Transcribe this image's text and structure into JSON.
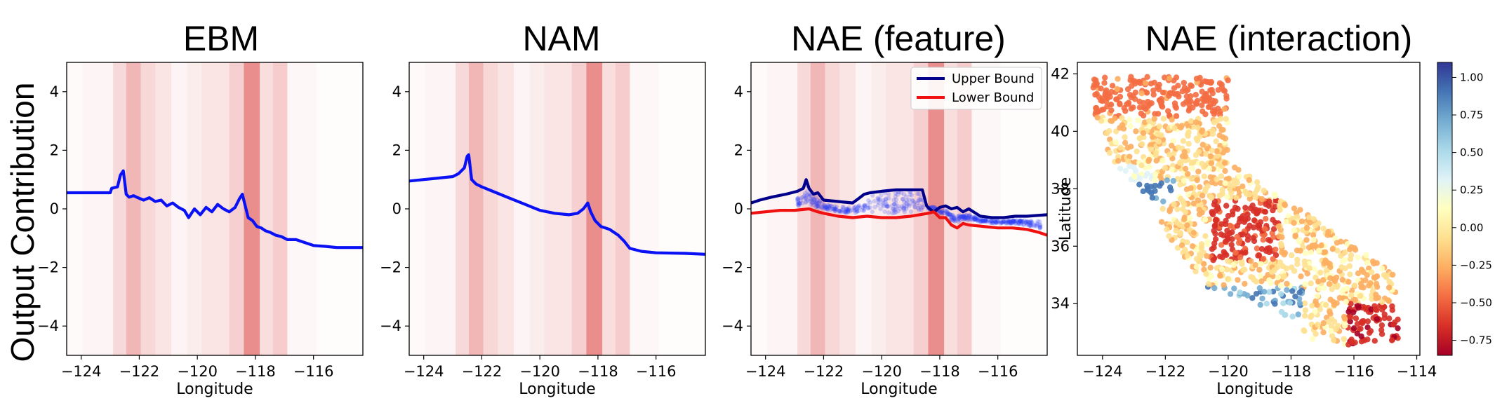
{
  "figure": {
    "shared_ylabel": "Output Contribution",
    "colorbar_ticks": [
      "1.00",
      "0.75",
      "0.50",
      "0.25",
      "0.00",
      "−0.25",
      "−0.50",
      "−0.75"
    ]
  },
  "chart_data": [
    {
      "type": "line",
      "title": "EBM",
      "xlabel": "Longitude",
      "ylabel": "Output Contribution",
      "xlim": [
        -124.5,
        -114.3
      ],
      "ylim": [
        -5,
        5
      ],
      "xticks": [
        -124,
        -122,
        -120,
        -118,
        -116
      ],
      "xtick_labels": [
        "−124",
        "−122",
        "−120",
        "−118",
        "−116"
      ],
      "yticks": [
        4,
        2,
        0,
        -2,
        -4
      ],
      "ytick_labels": [
        "4",
        "2",
        "0",
        "−2",
        "−4"
      ],
      "density_bands": [
        {
          "x0": -124.5,
          "x1": -123.95,
          "a": 0.04
        },
        {
          "x0": -123.95,
          "x1": -122.9,
          "a": 0.08
        },
        {
          "x0": -122.9,
          "x1": -122.45,
          "a": 0.28
        },
        {
          "x0": -122.45,
          "x1": -121.95,
          "a": 0.55
        },
        {
          "x0": -121.95,
          "x1": -121.45,
          "a": 0.3
        },
        {
          "x0": -121.45,
          "x1": -120.9,
          "a": 0.2
        },
        {
          "x0": -120.9,
          "x1": -120.35,
          "a": 0.08
        },
        {
          "x0": -120.35,
          "x1": -119.85,
          "a": 0.14
        },
        {
          "x0": -119.85,
          "x1": -118.9,
          "a": 0.2
        },
        {
          "x0": -118.9,
          "x1": -118.4,
          "a": 0.35
        },
        {
          "x0": -118.4,
          "x1": -117.85,
          "a": 0.85
        },
        {
          "x0": -117.85,
          "x1": -117.4,
          "a": 0.25
        },
        {
          "x0": -117.4,
          "x1": -116.9,
          "a": 0.38
        },
        {
          "x0": -116.9,
          "x1": -115.9,
          "a": 0.06
        },
        {
          "x0": -115.9,
          "x1": -114.3,
          "a": 0.02
        }
      ],
      "series": [
        {
          "name": "EBM shape",
          "color": "#0a12f5",
          "x": [
            -124.5,
            -123.0,
            -122.95,
            -122.75,
            -122.65,
            -122.55,
            -122.45,
            -122.35,
            -122.2,
            -122.05,
            -121.85,
            -121.65,
            -121.45,
            -121.25,
            -121.05,
            -120.85,
            -120.65,
            -120.45,
            -120.3,
            -120.1,
            -119.9,
            -119.7,
            -119.5,
            -119.3,
            -119.1,
            -118.9,
            -118.7,
            -118.55,
            -118.45,
            -118.35,
            -118.25,
            -118.1,
            -117.95,
            -117.8,
            -117.65,
            -117.5,
            -117.3,
            -117.1,
            -116.9,
            -116.6,
            -116.3,
            -116.0,
            -115.6,
            -115.2,
            -114.9,
            -114.3
          ],
          "y": [
            0.55,
            0.55,
            0.7,
            0.75,
            1.15,
            1.3,
            0.5,
            0.4,
            0.45,
            0.38,
            0.3,
            0.38,
            0.25,
            0.3,
            0.1,
            0.2,
            0.05,
            -0.05,
            -0.3,
            0.0,
            -0.2,
            0.05,
            -0.1,
            0.15,
            0.0,
            -0.1,
            0.05,
            0.35,
            0.5,
            0.1,
            -0.3,
            -0.4,
            -0.6,
            -0.65,
            -0.75,
            -0.8,
            -0.9,
            -0.95,
            -1.05,
            -1.05,
            -1.15,
            -1.25,
            -1.28,
            -1.32,
            -1.32,
            -1.32
          ]
        }
      ]
    },
    {
      "type": "line",
      "title": "NAM",
      "xlabel": "Longitude",
      "xlim": [
        -124.5,
        -114.3
      ],
      "ylim": [
        -5,
        5
      ],
      "xticks": [
        -124,
        -122,
        -120,
        -118,
        -116
      ],
      "xtick_labels": [
        "−124",
        "−122",
        "−120",
        "−118",
        "−116"
      ],
      "yticks": [
        4,
        2,
        0,
        -2,
        -4
      ],
      "ytick_labels": [
        "4",
        "2",
        "0",
        "−2",
        "−4"
      ],
      "density_bands": [
        {
          "x0": -124.5,
          "x1": -123.95,
          "a": 0.04
        },
        {
          "x0": -123.95,
          "x1": -122.9,
          "a": 0.08
        },
        {
          "x0": -122.9,
          "x1": -122.45,
          "a": 0.28
        },
        {
          "x0": -122.45,
          "x1": -121.95,
          "a": 0.55
        },
        {
          "x0": -121.95,
          "x1": -121.45,
          "a": 0.3
        },
        {
          "x0": -121.45,
          "x1": -120.9,
          "a": 0.2
        },
        {
          "x0": -120.9,
          "x1": -120.35,
          "a": 0.08
        },
        {
          "x0": -120.35,
          "x1": -119.85,
          "a": 0.14
        },
        {
          "x0": -119.85,
          "x1": -118.9,
          "a": 0.2
        },
        {
          "x0": -118.9,
          "x1": -118.4,
          "a": 0.35
        },
        {
          "x0": -118.4,
          "x1": -117.85,
          "a": 0.85
        },
        {
          "x0": -117.85,
          "x1": -117.4,
          "a": 0.25
        },
        {
          "x0": -117.4,
          "x1": -116.9,
          "a": 0.38
        },
        {
          "x0": -116.9,
          "x1": -115.9,
          "a": 0.06
        },
        {
          "x0": -115.9,
          "x1": -114.3,
          "a": 0.02
        }
      ],
      "series": [
        {
          "name": "NAM shape",
          "color": "#0a12f5",
          "x": [
            -124.5,
            -124.0,
            -123.5,
            -123.0,
            -122.8,
            -122.6,
            -122.5,
            -122.45,
            -122.35,
            -122.2,
            -122.0,
            -121.5,
            -121.0,
            -120.5,
            -120.0,
            -119.5,
            -119.0,
            -118.7,
            -118.5,
            -118.35,
            -118.25,
            -118.1,
            -117.9,
            -117.6,
            -117.3,
            -117.1,
            -116.9,
            -116.5,
            -116.0,
            -115.0,
            -114.3
          ],
          "y": [
            0.95,
            1.0,
            1.05,
            1.1,
            1.2,
            1.4,
            1.8,
            1.85,
            1.0,
            0.85,
            0.75,
            0.55,
            0.35,
            0.15,
            -0.05,
            -0.15,
            -0.2,
            -0.15,
            0.0,
            0.2,
            -0.1,
            -0.4,
            -0.6,
            -0.7,
            -0.9,
            -1.1,
            -1.35,
            -1.45,
            -1.5,
            -1.52,
            -1.55
          ]
        }
      ]
    },
    {
      "type": "line",
      "title": "NAE (feature)",
      "xlabel": "Longitude",
      "xlim": [
        -124.5,
        -114.3
      ],
      "ylim": [
        -5,
        5
      ],
      "xticks": [
        -124,
        -122,
        -120,
        -118,
        -116
      ],
      "xtick_labels": [
        "−124",
        "−122",
        "−120",
        "−118",
        "−116"
      ],
      "yticks": [
        4,
        2,
        0,
        -2,
        -4
      ],
      "ytick_labels": [
        "4",
        "2",
        "0",
        "−2",
        "−4"
      ],
      "legend": {
        "position": "upper right",
        "entries": [
          "Upper Bound",
          "Lower Bound"
        ]
      },
      "density_bands": [
        {
          "x0": -124.5,
          "x1": -123.95,
          "a": 0.04
        },
        {
          "x0": -123.95,
          "x1": -122.9,
          "a": 0.08
        },
        {
          "x0": -122.9,
          "x1": -122.45,
          "a": 0.28
        },
        {
          "x0": -122.45,
          "x1": -121.95,
          "a": 0.55
        },
        {
          "x0": -121.95,
          "x1": -121.45,
          "a": 0.3
        },
        {
          "x0": -121.45,
          "x1": -120.9,
          "a": 0.2
        },
        {
          "x0": -120.9,
          "x1": -120.35,
          "a": 0.08
        },
        {
          "x0": -120.35,
          "x1": -119.85,
          "a": 0.14
        },
        {
          "x0": -119.85,
          "x1": -118.9,
          "a": 0.2
        },
        {
          "x0": -118.9,
          "x1": -118.4,
          "a": 0.35
        },
        {
          "x0": -118.4,
          "x1": -117.85,
          "a": 0.85
        },
        {
          "x0": -117.85,
          "x1": -117.4,
          "a": 0.25
        },
        {
          "x0": -117.4,
          "x1": -116.9,
          "a": 0.38
        },
        {
          "x0": -116.9,
          "x1": -115.9,
          "a": 0.06
        },
        {
          "x0": -115.9,
          "x1": -114.3,
          "a": 0.02
        }
      ],
      "series": [
        {
          "name": "Upper Bound",
          "color": "#00008b",
          "x": [
            -124.5,
            -124.2,
            -123.8,
            -123.3,
            -122.9,
            -122.7,
            -122.6,
            -122.5,
            -122.35,
            -122.2,
            -122.0,
            -121.5,
            -121.0,
            -120.8,
            -120.6,
            -120.4,
            -120.0,
            -119.5,
            -119.0,
            -118.6,
            -118.45,
            -118.35,
            -118.2,
            -118.0,
            -117.8,
            -117.6,
            -117.4,
            -117.2,
            -117.0,
            -116.6,
            -116.2,
            -115.8,
            -115.4,
            -115.0,
            -114.3
          ],
          "y": [
            0.2,
            0.3,
            0.4,
            0.5,
            0.6,
            0.7,
            1.0,
            0.7,
            0.5,
            0.55,
            0.3,
            0.25,
            0.2,
            0.35,
            0.5,
            0.55,
            0.6,
            0.65,
            0.65,
            0.65,
            0.1,
            0.0,
            -0.1,
            0.05,
            0.1,
            0.0,
            0.05,
            -0.1,
            0.0,
            -0.25,
            -0.3,
            -0.3,
            -0.25,
            -0.25,
            -0.2
          ]
        },
        {
          "name": "Lower Bound",
          "color": "#f01010",
          "x": [
            -124.5,
            -124.0,
            -123.5,
            -123.0,
            -122.5,
            -122.2,
            -122.0,
            -121.5,
            -121.0,
            -120.5,
            -120.0,
            -119.5,
            -119.0,
            -118.7,
            -118.4,
            -118.2,
            -118.0,
            -117.8,
            -117.6,
            -117.4,
            -117.2,
            -117.0,
            -116.5,
            -116.0,
            -115.5,
            -115.0,
            -114.6,
            -114.3
          ],
          "y": [
            -0.15,
            -0.1,
            -0.05,
            -0.05,
            0.0,
            -0.1,
            -0.15,
            -0.25,
            -0.3,
            -0.25,
            -0.3,
            -0.3,
            -0.25,
            -0.2,
            -0.15,
            -0.1,
            -0.3,
            -0.3,
            -0.55,
            -0.65,
            -0.5,
            -0.55,
            -0.6,
            -0.65,
            -0.65,
            -0.7,
            -0.8,
            -0.9
          ]
        }
      ],
      "scatter_band": {
        "color": "#2a3cf5",
        "x_range": [
          -122.9,
          -114.5
        ],
        "description": "contribution samples between bounds"
      }
    },
    {
      "type": "scatter",
      "title": "NAE (interaction)",
      "xlabel": "Longitude",
      "ylabel": "Latitude",
      "xlim": [
        -124.8,
        -113.9
      ],
      "ylim": [
        32.2,
        42.4
      ],
      "xticks": [
        -124,
        -122,
        -120,
        -118,
        -116,
        -114
      ],
      "xtick_labels": [
        "−124",
        "−122",
        "−120",
        "−118",
        "−116",
        "−114"
      ],
      "yticks": [
        34,
        36,
        38,
        40,
        42
      ],
      "ytick_labels": [
        "34",
        "36",
        "38",
        "40",
        "42"
      ],
      "colorbar": {
        "cmap": "RdYlBu",
        "range": [
          -0.85,
          1.1
        ],
        "ticks": [
          1.0,
          0.75,
          0.5,
          0.25,
          0.0,
          -0.25,
          -0.5,
          -0.75
        ]
      }
    }
  ]
}
